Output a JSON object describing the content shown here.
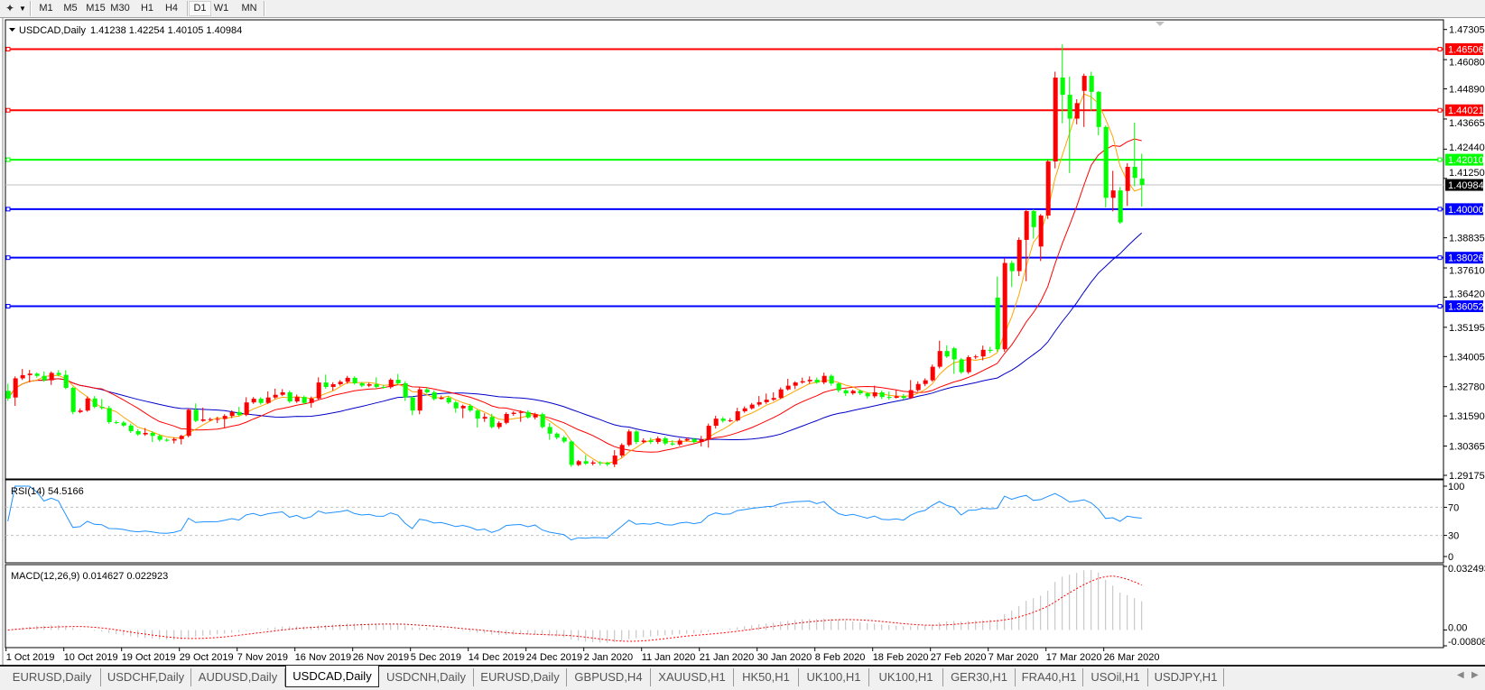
{
  "toolbar": {
    "icon": "chart-tools-icon",
    "dropdown_icon": "caret-down-icon",
    "timeframes": [
      "M1",
      "M5",
      "M15",
      "M30",
      "H1",
      "H4",
      "D1",
      "W1",
      "MN"
    ],
    "active_timeframe": "D1"
  },
  "chart_data": [
    {
      "type": "candlestick",
      "title": "USDCAD,Daily",
      "ohlc_readout": "1.41238 1.42254 1.40105 1.40984",
      "colors": {
        "up": "#ff0000",
        "down": "#00ff00",
        "ma_fast": "#ffa500",
        "ma_mid": "#ff0000",
        "ma_slow": "#0000c8",
        "current_price_line": "#c0c0c0"
      },
      "ylim": [
        1.29175,
        1.47305
      ],
      "grid": false,
      "y_tick_labels": [
        "1.47305",
        "1.46080",
        "1.44890",
        "1.43665",
        "1.42440",
        "1.41250",
        "1.38835",
        "1.37610",
        "1.36420",
        "1.35195",
        "1.34005",
        "1.32780",
        "1.31590",
        "1.30365",
        "1.29175"
      ],
      "x_tick_labels": [
        "1 Oct 2019",
        "10 Oct 2019",
        "19 Oct 2019",
        "29 Oct 2019",
        "7 Nov 2019",
        "16 Nov 2019",
        "26 Nov 2019",
        "5 Dec 2019",
        "14 Dec 2019",
        "24 Dec 2019",
        "2 Jan 2020",
        "11 Jan 2020",
        "21 Jan 2020",
        "30 Jan 2020",
        "8 Feb 2020",
        "18 Feb 2020",
        "27 Feb 2020",
        "7 Mar 2020",
        "17 Mar 2020",
        "26 Mar 2020"
      ],
      "horizontal_lines": [
        {
          "label": "1.46506",
          "value": 1.46506,
          "color": "#ff0000"
        },
        {
          "label": "1.44021",
          "value": 1.44021,
          "color": "#ff0000"
        },
        {
          "label": "1.42010",
          "value": 1.4201,
          "color": "#00ff00"
        },
        {
          "label": "1.40000",
          "value": 1.4,
          "color": "#0000ff"
        },
        {
          "label": "1.38026",
          "value": 1.38026,
          "color": "#0000ff"
        },
        {
          "label": "1.36052",
          "value": 1.36052,
          "color": "#0000ff"
        }
      ],
      "current_price": {
        "label": "1.40984",
        "value": 1.40984
      },
      "ohlc": [
        [
          1.3261,
          1.329,
          1.322,
          1.323
        ],
        [
          1.3234,
          1.332,
          1.32,
          1.3312
        ],
        [
          1.3312,
          1.335,
          1.3305,
          1.3325
        ],
        [
          1.3325,
          1.3346,
          1.3296,
          1.3331
        ],
        [
          1.3331,
          1.3336,
          1.3315,
          1.3322
        ],
        [
          1.3322,
          1.334,
          1.3298,
          1.3304
        ],
        [
          1.3304,
          1.334,
          1.3285,
          1.3334
        ],
        [
          1.3334,
          1.3345,
          1.332,
          1.3326
        ],
        [
          1.3326,
          1.3345,
          1.3268,
          1.3273
        ],
        [
          1.3273,
          1.3278,
          1.3166,
          1.3175
        ],
        [
          1.3175,
          1.319,
          1.317,
          1.3181
        ],
        [
          1.3181,
          1.3238,
          1.3176,
          1.323
        ],
        [
          1.323,
          1.324,
          1.319,
          1.3196
        ],
        [
          1.3196,
          1.3228,
          1.3185,
          1.3191
        ],
        [
          1.3191,
          1.32,
          1.3127,
          1.3134
        ],
        [
          1.3134,
          1.314,
          1.3126,
          1.3132
        ],
        [
          1.3132,
          1.3138,
          1.3115,
          1.312
        ],
        [
          1.312,
          1.3128,
          1.309,
          1.3097
        ],
        [
          1.3097,
          1.3105,
          1.3078,
          1.3084
        ],
        [
          1.3084,
          1.311,
          1.3078,
          1.309
        ],
        [
          1.309,
          1.3097,
          1.3053,
          1.3078
        ],
        [
          1.3078,
          1.3085,
          1.3055,
          1.3062
        ],
        [
          1.3062,
          1.3068,
          1.3054,
          1.3059
        ],
        [
          1.3059,
          1.3072,
          1.3047,
          1.3065
        ],
        [
          1.3065,
          1.3082,
          1.3043,
          1.3078
        ],
        [
          1.3078,
          1.319,
          1.3072,
          1.3184
        ],
        [
          1.3184,
          1.321,
          1.3134,
          1.3139
        ],
        [
          1.3139,
          1.3193,
          1.3135,
          1.3145
        ],
        [
          1.3145,
          1.3152,
          1.3138,
          1.3146
        ],
        [
          1.3146,
          1.3155,
          1.313,
          1.3147
        ],
        [
          1.3147,
          1.3166,
          1.3112,
          1.3159
        ],
        [
          1.3159,
          1.3182,
          1.315,
          1.3175
        ],
        [
          1.3175,
          1.3196,
          1.3158,
          1.3163
        ],
        [
          1.3163,
          1.3235,
          1.3158,
          1.3214
        ],
        [
          1.3214,
          1.3236,
          1.3208,
          1.3229
        ],
        [
          1.3229,
          1.3235,
          1.3205,
          1.3212
        ],
        [
          1.3212,
          1.3259,
          1.3208,
          1.3234
        ],
        [
          1.3234,
          1.327,
          1.3228,
          1.3245
        ],
        [
          1.3245,
          1.3268,
          1.324,
          1.3255
        ],
        [
          1.3255,
          1.3262,
          1.3212,
          1.3218
        ],
        [
          1.3218,
          1.3246,
          1.3212,
          1.3236
        ],
        [
          1.3236,
          1.3242,
          1.3205,
          1.3212
        ],
        [
          1.3212,
          1.3238,
          1.3193,
          1.323
        ],
        [
          1.323,
          1.3316,
          1.3225,
          1.3295
        ],
        [
          1.3295,
          1.3327,
          1.327,
          1.3277
        ],
        [
          1.3277,
          1.3296,
          1.3262,
          1.3288
        ],
        [
          1.3288,
          1.3305,
          1.3282,
          1.3298
        ],
        [
          1.3298,
          1.3322,
          1.329,
          1.3314
        ],
        [
          1.3314,
          1.332,
          1.3286,
          1.3292
        ],
        [
          1.3292,
          1.3297,
          1.3276,
          1.3282
        ],
        [
          1.3282,
          1.3295,
          1.3276,
          1.3288
        ],
        [
          1.3288,
          1.3316,
          1.327,
          1.3277
        ],
        [
          1.3277,
          1.3285,
          1.327,
          1.3276
        ],
        [
          1.3276,
          1.3312,
          1.327,
          1.3306
        ],
        [
          1.3306,
          1.333,
          1.3286,
          1.3292
        ],
        [
          1.3292,
          1.33,
          1.322,
          1.3234
        ],
        [
          1.3234,
          1.324,
          1.3162,
          1.3181
        ],
        [
          1.3181,
          1.3275,
          1.3166,
          1.3267
        ],
        [
          1.3267,
          1.3274,
          1.325,
          1.3255
        ],
        [
          1.3255,
          1.3262,
          1.3222,
          1.3228
        ],
        [
          1.3228,
          1.3242,
          1.3226,
          1.3233
        ],
        [
          1.3233,
          1.324,
          1.3208,
          1.3214
        ],
        [
          1.3214,
          1.322,
          1.3172,
          1.319
        ],
        [
          1.319,
          1.3205,
          1.315,
          1.32
        ],
        [
          1.32,
          1.3208,
          1.3175,
          1.3181
        ],
        [
          1.3181,
          1.3186,
          1.3112,
          1.3148
        ],
        [
          1.3148,
          1.317,
          1.3135,
          1.3155
        ],
        [
          1.3155,
          1.3168,
          1.3108,
          1.3114
        ],
        [
          1.3114,
          1.3138,
          1.3106,
          1.3131
        ],
        [
          1.3131,
          1.3174,
          1.3125,
          1.3167
        ],
        [
          1.3167,
          1.3178,
          1.316,
          1.3172
        ],
        [
          1.3172,
          1.3182,
          1.3135,
          1.3175
        ],
        [
          1.3175,
          1.3182,
          1.3148,
          1.3153
        ],
        [
          1.3153,
          1.3172,
          1.3145,
          1.3166
        ],
        [
          1.3166,
          1.3172,
          1.3108,
          1.3114
        ],
        [
          1.3114,
          1.313,
          1.3062,
          1.3087
        ],
        [
          1.3087,
          1.3092,
          1.3064,
          1.3071
        ],
        [
          1.3071,
          1.3078,
          1.3049,
          1.3055
        ],
        [
          1.3055,
          1.306,
          1.2952,
          1.296
        ],
        [
          1.296,
          1.298,
          1.2955,
          1.2975
        ],
        [
          1.2975,
          1.3,
          1.296,
          1.2965
        ],
        [
          1.2965,
          1.2978,
          1.2958,
          1.297
        ],
        [
          1.297,
          1.2975,
          1.2958,
          1.2968
        ],
        [
          1.2968,
          1.2973,
          1.2955,
          1.2962
        ],
        [
          1.2962,
          1.302,
          1.2951,
          1.2998
        ],
        [
          1.2998,
          1.3048,
          1.299,
          1.3041
        ],
        [
          1.3041,
          1.3104,
          1.3035,
          1.3096
        ],
        [
          1.3096,
          1.3102,
          1.3045,
          1.3053
        ],
        [
          1.3053,
          1.3068,
          1.3047,
          1.3059
        ],
        [
          1.3059,
          1.307,
          1.3045,
          1.3053
        ],
        [
          1.3053,
          1.3076,
          1.3045,
          1.3068
        ],
        [
          1.3068,
          1.3075,
          1.304,
          1.3047
        ],
        [
          1.3047,
          1.306,
          1.3038,
          1.3043
        ],
        [
          1.3043,
          1.3068,
          1.3037,
          1.3059
        ],
        [
          1.3059,
          1.3072,
          1.3055,
          1.3065
        ],
        [
          1.3065,
          1.307,
          1.3048,
          1.3053
        ],
        [
          1.3053,
          1.3078,
          1.3035,
          1.3063
        ],
        [
          1.3063,
          1.3128,
          1.303,
          1.3119
        ],
        [
          1.3119,
          1.316,
          1.3108,
          1.3148
        ],
        [
          1.3148,
          1.3155,
          1.3132,
          1.3139
        ],
        [
          1.3139,
          1.315,
          1.3134,
          1.3141
        ],
        [
          1.3141,
          1.3192,
          1.3136,
          1.3178
        ],
        [
          1.3178,
          1.3198,
          1.3172,
          1.319
        ],
        [
          1.319,
          1.3212,
          1.3185,
          1.3205
        ],
        [
          1.3205,
          1.324,
          1.3198,
          1.3215
        ],
        [
          1.3215,
          1.325,
          1.3208,
          1.3225
        ],
        [
          1.3225,
          1.3255,
          1.322,
          1.3232
        ],
        [
          1.3232,
          1.3275,
          1.3228,
          1.3267
        ],
        [
          1.3267,
          1.331,
          1.3262,
          1.3282
        ],
        [
          1.3282,
          1.33,
          1.3268,
          1.3295
        ],
        [
          1.3295,
          1.3315,
          1.329,
          1.33
        ],
        [
          1.33,
          1.332,
          1.329,
          1.3306
        ],
        [
          1.3306,
          1.3315,
          1.329,
          1.3295
        ],
        [
          1.3295,
          1.3335,
          1.3288,
          1.3322
        ],
        [
          1.3322,
          1.3328,
          1.3282,
          1.3291
        ],
        [
          1.3291,
          1.3296,
          1.3255,
          1.3263
        ],
        [
          1.3263,
          1.3268,
          1.324,
          1.3251
        ],
        [
          1.3251,
          1.3266,
          1.3245,
          1.3261
        ],
        [
          1.3261,
          1.3266,
          1.3244,
          1.3251
        ],
        [
          1.3251,
          1.3256,
          1.323,
          1.3239
        ],
        [
          1.3239,
          1.3282,
          1.3232,
          1.3255
        ],
        [
          1.3255,
          1.3262,
          1.3228,
          1.3236
        ],
        [
          1.3236,
          1.3258,
          1.3225,
          1.3233
        ],
        [
          1.3233,
          1.3265,
          1.323,
          1.3239
        ],
        [
          1.3239,
          1.3248,
          1.3225,
          1.3232
        ],
        [
          1.3232,
          1.3305,
          1.3228,
          1.3264
        ],
        [
          1.3264,
          1.33,
          1.3258,
          1.3289
        ],
        [
          1.3289,
          1.3312,
          1.328,
          1.3304
        ],
        [
          1.3304,
          1.3368,
          1.3298,
          1.3359
        ],
        [
          1.3359,
          1.3465,
          1.3352,
          1.3423
        ],
        [
          1.3423,
          1.3446,
          1.3395,
          1.3401
        ],
        [
          1.3434,
          1.344,
          1.333,
          1.3389
        ],
        [
          1.3389,
          1.3395,
          1.333,
          1.3337
        ],
        [
          1.3337,
          1.3405,
          1.333,
          1.3398
        ],
        [
          1.3398,
          1.3408,
          1.339,
          1.3401
        ],
        [
          1.3401,
          1.3445,
          1.3385,
          1.3428
        ],
        [
          1.3428,
          1.344,
          1.3415,
          1.3424
        ],
        [
          1.364,
          1.3726,
          1.342,
          1.343
        ],
        [
          1.343,
          1.38,
          1.342,
          1.3781
        ],
        [
          1.3781,
          1.379,
          1.3683,
          1.3748
        ],
        [
          1.3748,
          1.3885,
          1.3728,
          1.3875
        ],
        [
          1.3875,
          1.4,
          1.3707,
          1.3992
        ],
        [
          1.3992,
          1.4,
          1.388,
          1.3927
        ],
        [
          1.3848,
          1.398,
          1.3789,
          1.3974
        ],
        [
          1.3974,
          1.42,
          1.396,
          1.4194
        ],
        [
          1.4194,
          1.4559,
          1.4166,
          1.4535
        ],
        [
          1.4535,
          1.467,
          1.4349,
          1.4465
        ],
        [
          1.4465,
          1.4539,
          1.4147,
          1.4368
        ],
        [
          1.4368,
          1.4447,
          1.4345,
          1.4431
        ],
        [
          1.4481,
          1.4551,
          1.4334,
          1.4542
        ],
        [
          1.4542,
          1.4559,
          1.44,
          1.4477
        ],
        [
          1.4477,
          1.448,
          1.43,
          1.4334
        ],
        [
          1.4334,
          1.434,
          1.4007,
          1.4046
        ],
        [
          1.4046,
          1.4156,
          1.3991,
          1.4076
        ],
        [
          1.4076,
          1.409,
          1.394,
          1.3946
        ],
        [
          1.4074,
          1.4187,
          1.4013,
          1.4172
        ],
        [
          1.4172,
          1.4352,
          1.4093,
          1.4127
        ],
        [
          1.41238,
          1.42254,
          1.40105,
          1.40984
        ]
      ]
    },
    {
      "type": "line",
      "title": "RSI(14) 54.5166",
      "ylim": [
        0,
        100
      ],
      "levels": [
        70,
        30
      ],
      "y_tick_labels": [
        "100",
        "70",
        "30",
        "0"
      ],
      "color": "#1e90ff"
    },
    {
      "type": "bar",
      "title": "MACD(12,26,9) 0.014627 0.022923",
      "ylim": [
        -0.008086,
        0.032493
      ],
      "y_tick_labels": [
        "0.032493",
        "0.00",
        "-0.008086"
      ],
      "histogram_color": "#c0c0c0",
      "signal_color": "#ff0000"
    }
  ],
  "tabs": [
    {
      "label": "EURUSD,Daily"
    },
    {
      "label": "USDCHF,Daily"
    },
    {
      "label": "AUDUSD,Daily"
    },
    {
      "label": "USDCAD,Daily"
    },
    {
      "label": "USDCNH,Daily"
    },
    {
      "label": "EURUSD,Daily"
    },
    {
      "label": "GBPUSD,H4"
    },
    {
      "label": "XAUUSD,H1"
    },
    {
      "label": "HK50,H1"
    },
    {
      "label": "UK100,H1"
    },
    {
      "label": "UK100,H1"
    },
    {
      "label": "GER30,H1"
    },
    {
      "label": "FRA40,H1"
    },
    {
      "label": "USOil,H1"
    },
    {
      "label": "USDJPY,H1"
    }
  ],
  "active_tab": "USDCAD,Daily",
  "tab_scroll": {
    "left_icon": "scroll-left-icon",
    "right_icon": "scroll-right-icon"
  }
}
